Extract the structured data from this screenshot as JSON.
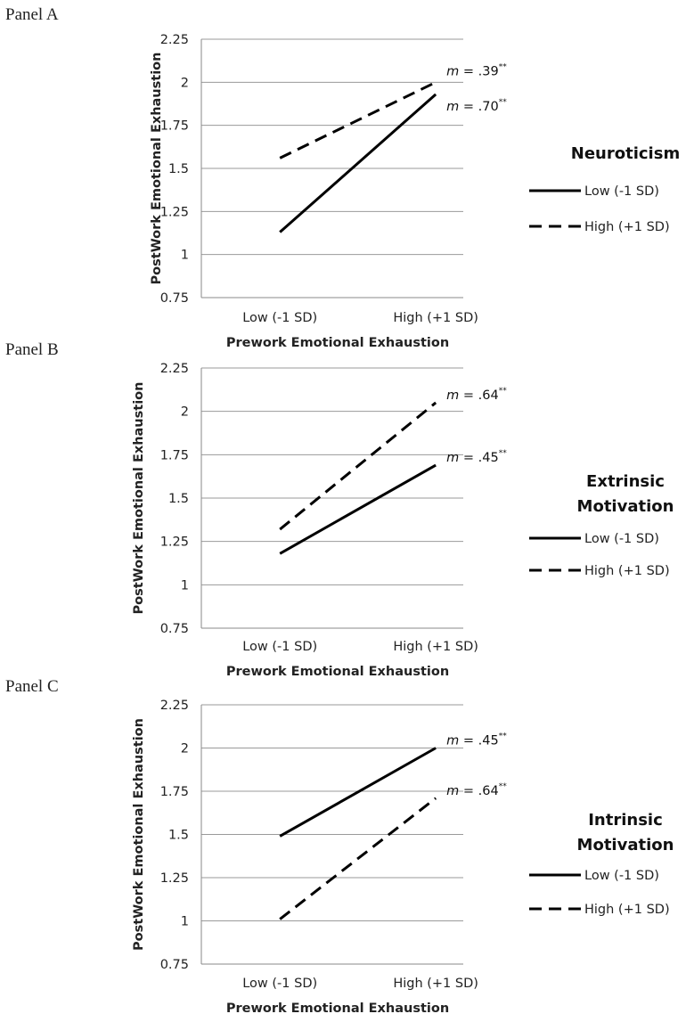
{
  "chart_data": [
    {
      "type": "line",
      "panel_label": "Panel A",
      "categories": [
        "Low (-1 SD)",
        "High (+1 SD)"
      ],
      "xlabel": "Prework Emotional Exhaustion",
      "ylabel": "PostWork Emotional Exhaustion",
      "ylim": [
        0.75,
        2.25
      ],
      "yticks": [
        "2.25",
        "2",
        "1.75",
        "1.5",
        "1.25",
        "1",
        "0.75"
      ],
      "grid": true,
      "legend_title": [
        "Neuroticism"
      ],
      "legend_position": "right",
      "series": [
        {
          "name": "Low (-1 SD)",
          "style": "solid",
          "values": [
            1.13,
            1.93
          ],
          "annotation": {
            "m": "m",
            "text": " = .70",
            "stars": "**"
          }
        },
        {
          "name": "High (+1 SD)",
          "style": "dashed",
          "values": [
            1.56,
            2.0
          ],
          "annotation": {
            "m": "m",
            "text": " = .39",
            "stars": "**"
          }
        }
      ]
    },
    {
      "type": "line",
      "panel_label": "Panel B",
      "categories": [
        "Low (-1 SD)",
        "High (+1 SD)"
      ],
      "xlabel": "Prework Emotional Exhaustion",
      "ylabel": "PostWork Emotional Exhaustion",
      "ylim": [
        0.75,
        2.25
      ],
      "yticks": [
        "2.25",
        "2",
        "1.75",
        "1.5",
        "1.25",
        "1",
        "0.75"
      ],
      "grid": true,
      "legend_title": [
        "Extrinsic",
        "Motivation"
      ],
      "legend_position": "right",
      "series": [
        {
          "name": "Low (-1 SD)",
          "style": "solid",
          "values": [
            1.18,
            1.69
          ],
          "annotation": {
            "m": "m",
            "text": " = .45",
            "stars": "**"
          }
        },
        {
          "name": "High (+1 SD)",
          "style": "dashed",
          "values": [
            1.32,
            2.05
          ],
          "annotation": {
            "m": "m",
            "text": " = .64",
            "stars": "**"
          }
        }
      ]
    },
    {
      "type": "line",
      "panel_label": "Panel C",
      "categories": [
        "Low (-1 SD)",
        "High (+1 SD)"
      ],
      "xlabel": "Prework Emotional Exhaustion",
      "ylabel": "PostWork Emotional Exhaustion",
      "ylim": [
        0.75,
        2.25
      ],
      "yticks": [
        "2.25",
        "2",
        "1.75",
        "1.5",
        "1.25",
        "1",
        "0.75"
      ],
      "grid": true,
      "legend_title": [
        "Intrinsic",
        "Motivation"
      ],
      "legend_position": "right",
      "series": [
        {
          "name": "Low (-1 SD)",
          "style": "solid",
          "values": [
            1.49,
            2.0
          ],
          "annotation": {
            "m": "m",
            "text": " = .45",
            "stars": "**"
          }
        },
        {
          "name": "High (+1 SD)",
          "style": "dashed",
          "values": [
            1.01,
            1.71
          ],
          "annotation": {
            "m": "m",
            "text": " = .64",
            "stars": "**"
          }
        }
      ]
    }
  ],
  "colors": {
    "line": "#000000",
    "grid": "#9a9a9a",
    "axis": "#8a8a8a",
    "text": "#222222"
  }
}
